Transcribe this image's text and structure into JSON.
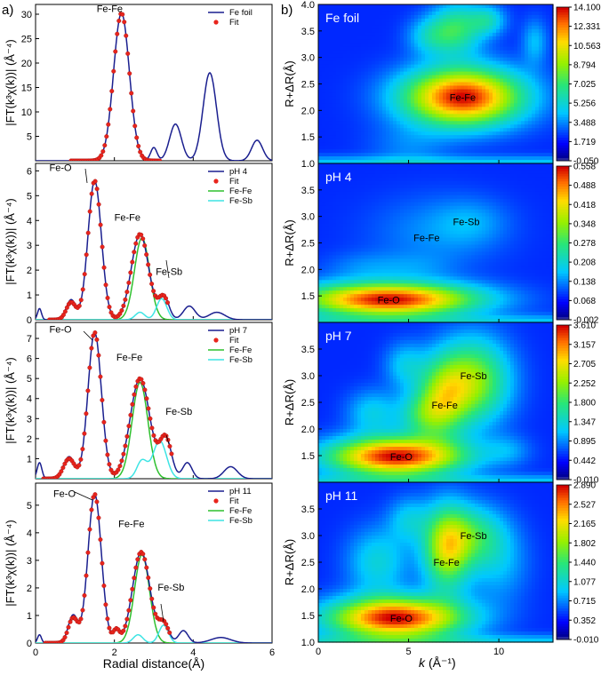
{
  "labels": {
    "panel_a": "a)",
    "panel_b": "b)",
    "x_label_a": "Radial distance(Å)",
    "x_label_b_k": "k",
    "x_label_b_unit": "(Å⁻¹)",
    "y_label_a": "|FT(k³χ(k))| (Å⁻⁴)",
    "y_label_b": "R+ΔR(Å)"
  },
  "chart_data": [
    {
      "type": "line",
      "id": "ft-fe-foil",
      "xlim": [
        0,
        6
      ],
      "ylim": [
        0,
        32
      ],
      "x_ticks": [],
      "y_ticks": [
        5,
        10,
        15,
        20,
        25,
        30
      ],
      "series": [
        {
          "name": "Fe foil",
          "color": "#1a1f8f",
          "style": "line",
          "peaks": [
            [
              2.18,
              30.2,
              0.2
            ],
            [
              3.0,
              2.7,
              0.08
            ],
            [
              3.55,
              7.5,
              0.15
            ],
            [
              4.42,
              18.0,
              0.17
            ],
            [
              5.62,
              4.2,
              0.14
            ]
          ]
        },
        {
          "name": "Fit",
          "color": "#e8241c",
          "style": "dots",
          "xrange": [
            0.9,
            3.15
          ],
          "peaks": [
            [
              2.18,
              30.2,
              0.2
            ]
          ]
        }
      ],
      "annotations": [
        {
          "text": "Fe-Fe",
          "x": 1.55,
          "y": 30.5
        }
      ]
    },
    {
      "type": "line",
      "id": "ft-ph4",
      "xlim": [
        0,
        6
      ],
      "ylim": [
        0,
        6.3
      ],
      "x_ticks": [],
      "y_ticks": [
        0,
        1,
        2,
        3,
        4,
        5,
        6
      ],
      "series": [
        {
          "name": "pH 4",
          "color": "#1a1f8f",
          "style": "line",
          "peaks": [
            [
              0.1,
              0.45,
              0.05
            ],
            [
              0.9,
              0.8,
              0.12
            ],
            [
              1.5,
              5.6,
              0.17
            ],
            [
              2.65,
              3.45,
              0.22
            ],
            [
              3.25,
              0.95,
              0.13
            ],
            [
              3.9,
              0.55,
              0.15
            ],
            [
              4.6,
              0.3,
              0.2
            ]
          ]
        },
        {
          "name": "Fit",
          "color": "#e8241c",
          "style": "dots",
          "xrange": [
            0.35,
            3.35
          ],
          "peaks": [
            [
              0.9,
              0.7,
              0.12
            ],
            [
              1.5,
              5.6,
              0.17
            ],
            [
              2.65,
              3.45,
              0.22
            ],
            [
              3.25,
              0.9,
              0.13
            ]
          ]
        },
        {
          "name": "Fe-Fe",
          "color": "#2ec02e",
          "style": "line",
          "peaks": [
            [
              2.7,
              3.3,
              0.19
            ]
          ]
        },
        {
          "name": "Fe-Sb",
          "color": "#3ee4e4",
          "style": "line",
          "peaks": [
            [
              2.65,
              0.3,
              0.12
            ],
            [
              3.2,
              0.85,
              0.13
            ]
          ]
        }
      ],
      "annotations": [
        {
          "text": "Fe-O",
          "x": 0.35,
          "y": 6.0
        },
        {
          "text": "Fe-Fe",
          "x": 2.0,
          "y": 4.0
        },
        {
          "text": "Fe-Sb",
          "x": 3.05,
          "y": 1.8
        }
      ]
    },
    {
      "type": "line",
      "id": "ft-ph7",
      "xlim": [
        0,
        6
      ],
      "ylim": [
        0,
        7.8
      ],
      "x_ticks": [],
      "y_ticks": [
        1,
        2,
        3,
        4,
        5,
        6,
        7
      ],
      "series": [
        {
          "name": "pH 7",
          "color": "#1a1f8f",
          "style": "line",
          "peaks": [
            [
              0.1,
              0.8,
              0.06
            ],
            [
              0.85,
              1.1,
              0.14
            ],
            [
              1.5,
              7.3,
              0.17
            ],
            [
              2.65,
              5.0,
              0.25
            ],
            [
              3.3,
              2.0,
              0.15
            ],
            [
              3.85,
              0.8,
              0.12
            ],
            [
              4.95,
              0.6,
              0.17
            ]
          ]
        },
        {
          "name": "Fit",
          "color": "#e8241c",
          "style": "dots",
          "xrange": [
            0.2,
            3.45
          ],
          "peaks": [
            [
              0.85,
              1.0,
              0.14
            ],
            [
              1.5,
              7.3,
              0.17
            ],
            [
              2.65,
              5.0,
              0.25
            ],
            [
              3.3,
              2.0,
              0.15
            ]
          ]
        },
        {
          "name": "Fe-Fe",
          "color": "#2ec02e",
          "style": "line",
          "peaks": [
            [
              2.65,
              4.8,
              0.2
            ]
          ]
        },
        {
          "name": "Fe-Sb",
          "color": "#3ee4e4",
          "style": "line",
          "peaks": [
            [
              2.7,
              0.9,
              0.13
            ],
            [
              3.15,
              1.9,
              0.17
            ]
          ]
        }
      ],
      "annotations": [
        {
          "text": "Fe-O",
          "x": 0.35,
          "y": 7.3
        },
        {
          "text": "Fe-Fe",
          "x": 2.05,
          "y": 5.9
        },
        {
          "text": "Fe-Sb",
          "x": 3.3,
          "y": 3.2
        }
      ]
    },
    {
      "type": "line",
      "id": "ft-ph11",
      "xlim": [
        0,
        6
      ],
      "ylim": [
        0,
        5.8
      ],
      "x_ticks": [
        0,
        2,
        4,
        6
      ],
      "y_ticks": [
        0,
        1,
        2,
        3,
        4,
        5
      ],
      "series": [
        {
          "name": "pH 11",
          "color": "#1a1f8f",
          "style": "line",
          "peaks": [
            [
              0.1,
              0.3,
              0.05
            ],
            [
              0.95,
              1.0,
              0.12
            ],
            [
              1.5,
              5.4,
              0.17
            ],
            [
              2.05,
              0.5,
              0.08
            ],
            [
              2.68,
              3.3,
              0.22
            ],
            [
              3.25,
              0.7,
              0.13
            ],
            [
              3.75,
              0.45,
              0.12
            ],
            [
              4.7,
              0.2,
              0.25
            ]
          ]
        },
        {
          "name": "Fit",
          "color": "#e8241c",
          "style": "dots",
          "xrange": [
            0.25,
            3.4
          ],
          "peaks": [
            [
              0.95,
              0.9,
              0.12
            ],
            [
              1.5,
              5.4,
              0.17
            ],
            [
              2.05,
              0.45,
              0.08
            ],
            [
              2.68,
              3.3,
              0.22
            ],
            [
              3.25,
              0.7,
              0.13
            ]
          ]
        },
        {
          "name": "Fe-Fe",
          "color": "#2ec02e",
          "style": "line",
          "peaks": [
            [
              2.7,
              3.2,
              0.19
            ]
          ]
        },
        {
          "name": "Fe-Sb",
          "color": "#3ee4e4",
          "style": "line",
          "peaks": [
            [
              2.6,
              0.3,
              0.12
            ],
            [
              3.25,
              0.65,
              0.12
            ]
          ]
        }
      ],
      "annotations": [
        {
          "text": "Fe-O",
          "x": 0.45,
          "y": 5.3
        },
        {
          "text": "Fe-Fe",
          "x": 2.1,
          "y": 4.2
        },
        {
          "text": "Fe-Sb",
          "x": 3.1,
          "y": 1.9
        }
      ]
    },
    {
      "type": "heatmap",
      "id": "wt-fe-foil",
      "title": "Fe foil",
      "xlim": [
        0,
        13
      ],
      "ylim": [
        1.0,
        4.0
      ],
      "x_ticks": [],
      "y_ticks": [
        1.0,
        1.5,
        2.0,
        2.5,
        3.0,
        3.5,
        4.0
      ],
      "colorbar": [
        "14.100",
        "12.331",
        "10.563",
        "8.794",
        "7.025",
        "5.256",
        "3.488",
        "1.719",
        "-0.050"
      ],
      "blobs": [
        [
          8.0,
          2.25,
          2.3,
          0.38,
          1.0
        ],
        [
          7.7,
          3.55,
          1.0,
          0.35,
          0.38
        ],
        [
          6.2,
          3.4,
          0.9,
          0.25,
          0.22
        ],
        [
          9.4,
          3.7,
          0.7,
          0.2,
          0.25
        ],
        [
          12.0,
          3.3,
          0.5,
          0.3,
          0.18
        ],
        [
          5.0,
          1.3,
          1.6,
          0.3,
          0.1
        ]
      ],
      "annotations": [
        {
          "text": "Fe-Fe",
          "x": 8.0,
          "y": 2.25
        }
      ]
    },
    {
      "type": "heatmap",
      "id": "wt-ph4",
      "title": "pH 4",
      "xlim": [
        0,
        13
      ],
      "ylim": [
        1.0,
        4.0
      ],
      "x_ticks": [],
      "y_ticks": [
        1.5,
        2.0,
        2.5,
        3.0,
        3.5
      ],
      "colorbar": [
        "0.558",
        "0.488",
        "0.418",
        "0.348",
        "0.278",
        "0.208",
        "0.138",
        "0.068",
        "-0.002"
      ],
      "blobs": [
        [
          3.9,
          1.43,
          3.4,
          0.22,
          1.0
        ],
        [
          6.5,
          2.7,
          2.6,
          0.5,
          0.12
        ],
        [
          8.5,
          2.9,
          1.4,
          0.3,
          0.1
        ],
        [
          2.5,
          2.05,
          1.6,
          0.2,
          0.1
        ],
        [
          5.5,
          2.05,
          1.5,
          0.18,
          0.07
        ]
      ],
      "annotations": [
        {
          "text": "Fe-O",
          "x": 3.9,
          "y": 1.43
        },
        {
          "text": "Fe-Fe",
          "x": 6.0,
          "y": 2.6
        },
        {
          "text": "Fe-Sb",
          "x": 8.2,
          "y": 2.9
        }
      ]
    },
    {
      "type": "heatmap",
      "id": "wt-ph7",
      "title": "pH 7",
      "xlim": [
        0,
        13
      ],
      "ylim": [
        1.0,
        4.0
      ],
      "x_ticks": [],
      "y_ticks": [
        1.5,
        2.0,
        2.5,
        3.0,
        3.5
      ],
      "colorbar": [
        "3.610",
        "3.157",
        "2.705",
        "2.252",
        "1.800",
        "1.347",
        "0.895",
        "0.442",
        "-0.010"
      ],
      "blobs": [
        [
          4.3,
          1.48,
          2.6,
          0.25,
          1.0
        ],
        [
          8.6,
          2.9,
          1.4,
          0.55,
          0.55
        ],
        [
          6.9,
          2.6,
          1.0,
          0.5,
          0.45
        ],
        [
          5.8,
          2.25,
          1.0,
          0.3,
          0.3
        ],
        [
          3.0,
          2.3,
          1.0,
          0.3,
          0.22
        ],
        [
          4.8,
          3.2,
          0.8,
          0.3,
          0.2
        ],
        [
          10.5,
          1.6,
          0.9,
          0.2,
          0.12
        ]
      ],
      "annotations": [
        {
          "text": "Fe-O",
          "x": 4.6,
          "y": 1.48
        },
        {
          "text": "Fe-Fe",
          "x": 7.0,
          "y": 2.45
        },
        {
          "text": "Fe-Sb",
          "x": 8.6,
          "y": 3.0
        }
      ]
    },
    {
      "type": "heatmap",
      "id": "wt-ph11",
      "title": "pH 11",
      "xlim": [
        0,
        13
      ],
      "ylim": [
        1.0,
        4.0
      ],
      "x_ticks": [
        0,
        5,
        10
      ],
      "y_ticks": [
        1.0,
        1.5,
        2.0,
        2.5,
        3.0,
        3.5
      ],
      "colorbar": [
        "2.890",
        "2.527",
        "2.165",
        "1.802",
        "1.440",
        "1.077",
        "0.715",
        "0.352",
        "-0.010"
      ],
      "blobs": [
        [
          4.3,
          1.45,
          2.6,
          0.27,
          1.0
        ],
        [
          7.1,
          2.75,
          0.9,
          0.55,
          0.6
        ],
        [
          8.6,
          3.0,
          1.3,
          0.4,
          0.35
        ],
        [
          3.3,
          2.5,
          1.2,
          0.45,
          0.25
        ],
        [
          10.0,
          2.4,
          1.2,
          0.5,
          0.15
        ],
        [
          5.0,
          3.3,
          0.8,
          0.3,
          0.2
        ]
      ],
      "annotations": [
        {
          "text": "Fe-O",
          "x": 4.6,
          "y": 1.45
        },
        {
          "text": "Fe-Fe",
          "x": 7.1,
          "y": 2.5
        },
        {
          "text": "Fe-Sb",
          "x": 8.6,
          "y": 3.0
        }
      ]
    }
  ]
}
